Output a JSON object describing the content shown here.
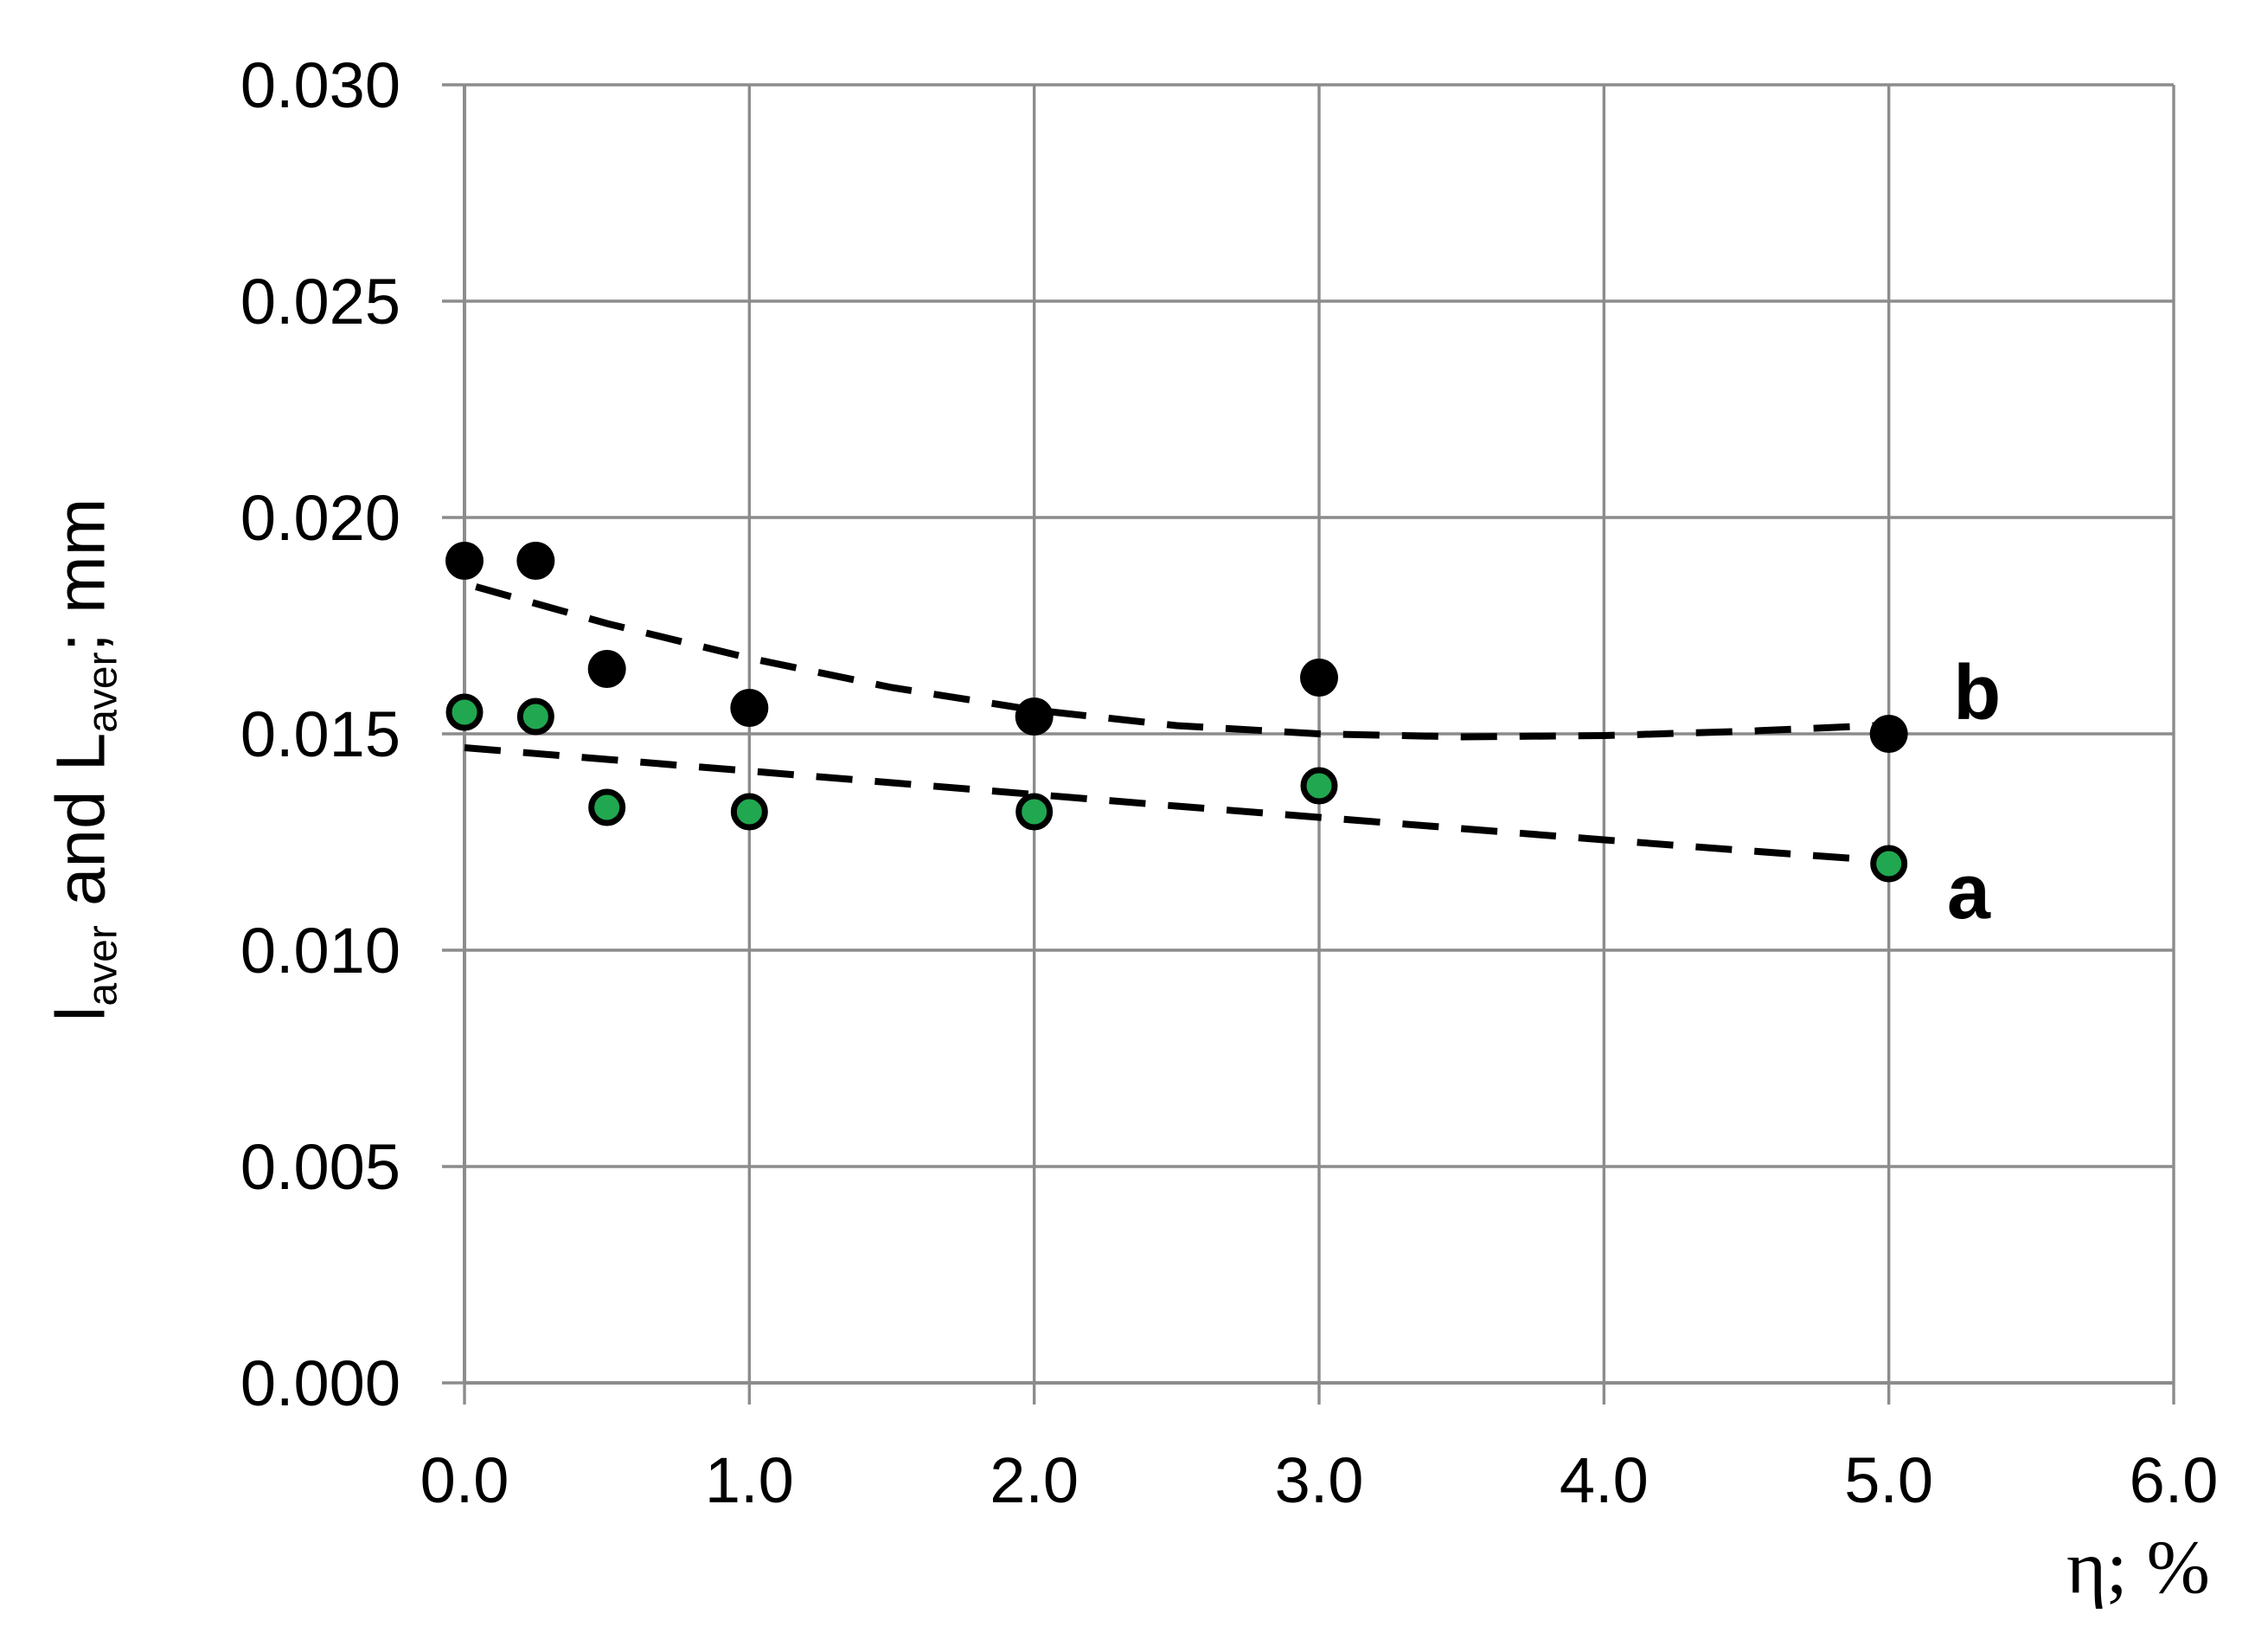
{
  "chart_data": {
    "type": "scatter",
    "title": "",
    "xlabel": "η; %",
    "ylabel_plain": "laver and Laver; mm",
    "ylabel_parts": [
      {
        "t": "l",
        "sub": false
      },
      {
        "t": "aver",
        "sub": true
      },
      {
        "t": " and L",
        "sub": false
      },
      {
        "t": "aver",
        "sub": true
      },
      {
        "t": "; mm",
        "sub": false
      }
    ],
    "xlim": [
      0,
      6
    ],
    "ylim": [
      0,
      0.03
    ],
    "grid": true,
    "x_tick_labels": [
      "0.0",
      "1.0",
      "2.0",
      "3.0",
      "4.0",
      "5.0",
      "6.0"
    ],
    "y_tick_labels": [
      "0.000",
      "0.005",
      "0.010",
      "0.015",
      "0.020",
      "0.025",
      "0.030"
    ],
    "colors": {
      "grid": "#8C8C8C",
      "axis": "#8C8C8C",
      "text": "#000000",
      "series_a_fill": "#21A74F",
      "series_b_fill": "#000000"
    },
    "series": [
      {
        "name": "b",
        "label": "b",
        "marker": {
          "fill": "#000000",
          "stroke": null
        },
        "trend_style": "dashed",
        "points": [
          [
            0,
            0.019
          ],
          [
            0.25,
            0.019
          ],
          [
            0.5,
            0.0165
          ],
          [
            1,
            0.0156
          ],
          [
            2,
            0.0154
          ],
          [
            3,
            0.0163
          ],
          [
            5,
            0.015
          ]
        ],
        "trend": [
          [
            0.04,
            0.0184
          ],
          [
            0.5,
            0.01755
          ],
          [
            1,
            0.01675
          ],
          [
            1.5,
            0.01607
          ],
          [
            2,
            0.01555
          ],
          [
            2.5,
            0.01519
          ],
          [
            3,
            0.015
          ],
          [
            3.5,
            0.01493
          ],
          [
            4,
            0.01496
          ],
          [
            4.5,
            0.01506
          ],
          [
            5.02,
            0.01521
          ]
        ],
        "label_pos": [
          5.31,
          0.01596
        ]
      },
      {
        "name": "a",
        "label": "a",
        "marker": {
          "fill": "#21A74F",
          "stroke": "#000000"
        },
        "trend_style": "dashed",
        "points": [
          [
            0,
            0.0155
          ],
          [
            0.25,
            0.0154
          ],
          [
            0.5,
            0.0133
          ],
          [
            1,
            0.0132
          ],
          [
            2,
            0.0132
          ],
          [
            3,
            0.0138
          ],
          [
            5,
            0.012
          ]
        ],
        "trend": [
          [
            0,
            0.01468
          ],
          [
            0.5,
            0.01441
          ],
          [
            1,
            0.01414
          ],
          [
            1.5,
            0.01387
          ],
          [
            2,
            0.0136
          ],
          [
            2.5,
            0.01333
          ],
          [
            3,
            0.01307
          ],
          [
            3.5,
            0.01281
          ],
          [
            4,
            0.01255
          ],
          [
            4.5,
            0.0123
          ],
          [
            5,
            0.01206
          ]
        ],
        "label_pos": [
          5.28,
          0.01136
        ]
      }
    ]
  }
}
